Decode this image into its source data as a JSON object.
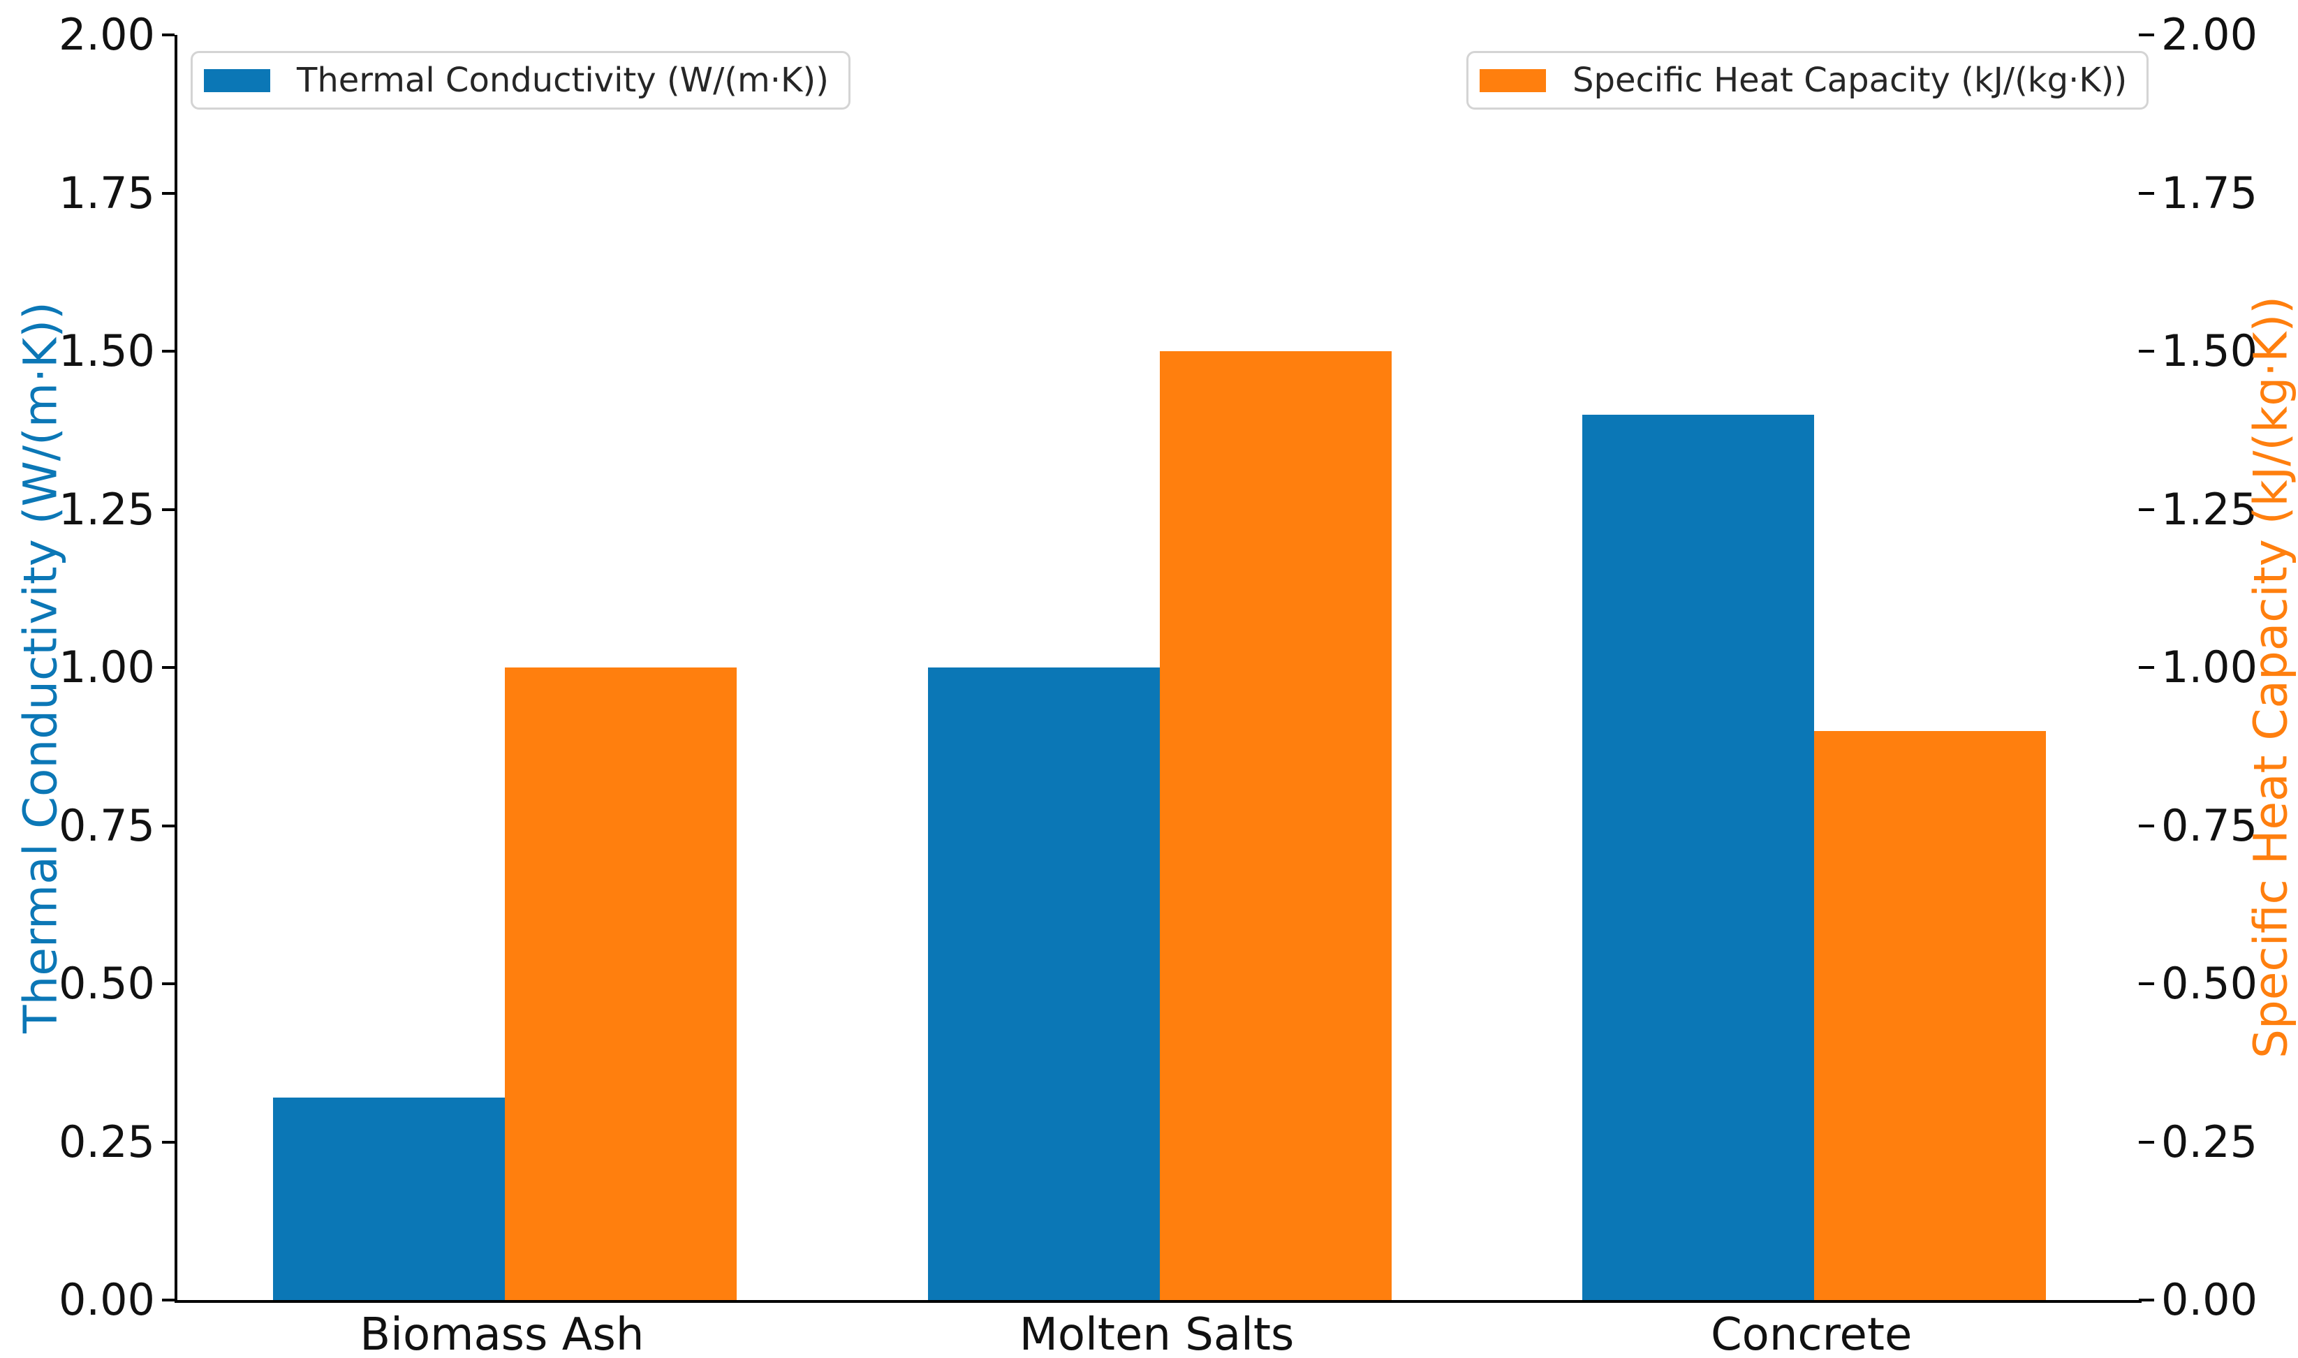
{
  "chart_data": {
    "type": "bar",
    "categories": [
      "Biomass Ash",
      "Molten Salts",
      "Concrete"
    ],
    "series": [
      {
        "name": "Thermal Conductivity (W/(m·K))",
        "axis": "left",
        "color": "#0b77b6",
        "values": [
          0.32,
          1.0,
          1.4
        ]
      },
      {
        "name": "Specific Heat Capacity (kJ/(kg·K))",
        "axis": "right",
        "color": "#ff7f0e",
        "values": [
          1.0,
          1.5,
          0.9
        ]
      }
    ],
    "left_axis": {
      "label": "Thermal Conductivity (W/(m·K))",
      "min": 0.0,
      "max": 2.0,
      "tick_labels": [
        "2.00",
        "1.75",
        "1.50",
        "1.25",
        "1.00",
        "0.75",
        "0.50",
        "0.25",
        "0.00"
      ],
      "color": "#0b77b6"
    },
    "right_axis": {
      "label": "Specific Heat Capacity (kJ/(kg·K))",
      "min": 0.0,
      "max": 2.0,
      "tick_labels": [
        "2.00",
        "1.75",
        "1.50",
        "1.25",
        "1.00",
        "0.75",
        "0.50",
        "0.25",
        "0.00"
      ],
      "color": "#ff7f0e"
    },
    "legend": {
      "left_entry": "Thermal Conductivity (W/(m·K))",
      "right_entry": "Specific Heat Capacity (kJ/(kg·K))",
      "position": "top, two separate boxes"
    },
    "grid": false,
    "bar_colors": {
      "thermal_conductivity": "#0b77b6",
      "specific_heat_capacity": "#ff7f0e"
    }
  }
}
